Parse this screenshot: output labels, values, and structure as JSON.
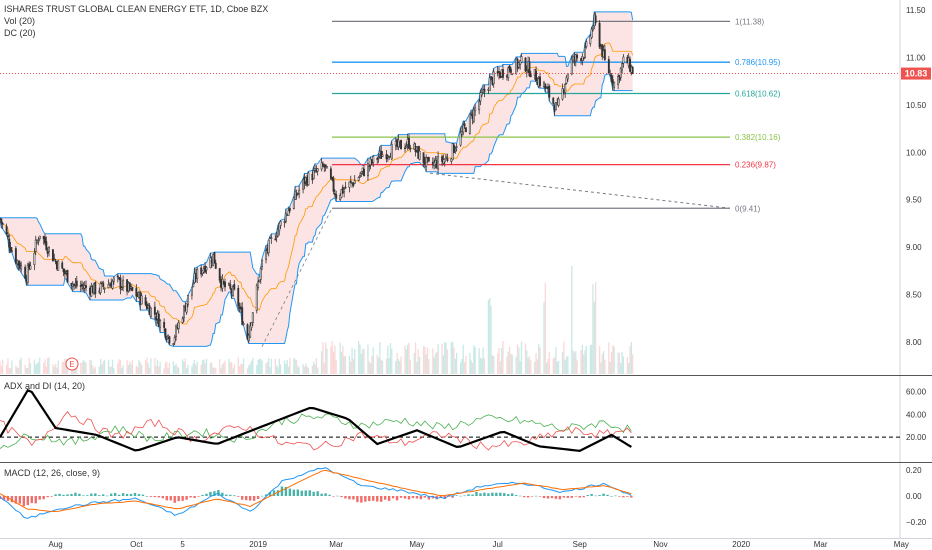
{
  "header": {
    "title": "ISHARES TRUST GLOBAL CLEAN ENERGY ETF, 1D, Cboe BZX",
    "vol_label": "Vol (20)",
    "dc_label": "DC (20)",
    "event_marker": "E"
  },
  "colors": {
    "up": "#26a69a",
    "down": "#ef5350",
    "candle": "#333333",
    "dc_fill": "#fce4e4",
    "dc_line": "#2196f3",
    "dc_mid": "#ff9800",
    "plus_di": "#4caf50",
    "minus_di": "#ef5350",
    "adx": "#000000",
    "macd": "#2196f3",
    "signal": "#ff6d00",
    "current_price_badge": "#ef5350"
  },
  "price_axis": {
    "ticks": [
      "11.50",
      "11.00",
      "10.50",
      "10.00",
      "9.50",
      "9.00",
      "8.50",
      "8.00"
    ],
    "current_price": "10.83"
  },
  "x_axis": {
    "ticks": [
      "Aug",
      "Oct",
      "5",
      "2019",
      "Mar",
      "May",
      "Jul",
      "Sep",
      "Nov",
      "2020",
      "Mar",
      "May"
    ]
  },
  "adx_panel": {
    "title": "ADX and DI (14, 20)",
    "ticks": [
      "60.00",
      "40.00",
      "20.00"
    ],
    "threshold": 20
  },
  "macd_panel": {
    "title": "MACD (12, 26, close, 9)",
    "ticks": [
      "0.20",
      "0.00",
      "−0.20"
    ]
  },
  "fib_levels": [
    {
      "label": "1(11.38)",
      "value": 11.38,
      "color": "#787b86"
    },
    {
      "label": "0.786(10.95)",
      "value": 10.95,
      "color": "#2196f3"
    },
    {
      "label": "0.618(10.62)",
      "value": 10.62,
      "color": "#26a69a"
    },
    {
      "label": "0.382(10.16)",
      "value": 10.16,
      "color": "#8bc34a"
    },
    {
      "label": "0.236(9.87)",
      "value": 9.87,
      "color": "#f23645"
    },
    {
      "label": "0(9.41)",
      "value": 9.41,
      "color": "#787b86"
    }
  ],
  "chart_data": {
    "type": "candlestick",
    "title": "ISHARES TRUST GLOBAL CLEAN ENERGY ETF, 1D, Cboe BZX",
    "ylim": [
      7.7,
      11.55
    ],
    "price_path": [
      {
        "date": "2018-06-20",
        "close": 9.3
      },
      {
        "date": "2018-07-01",
        "close": 8.9
      },
      {
        "date": "2018-07-10",
        "close": 8.7
      },
      {
        "date": "2018-07-20",
        "close": 9.15
      },
      {
        "date": "2018-08-01",
        "close": 8.85
      },
      {
        "date": "2018-08-15",
        "close": 8.6
      },
      {
        "date": "2018-09-01",
        "close": 8.55
      },
      {
        "date": "2018-09-15",
        "close": 8.65
      },
      {
        "date": "2018-10-01",
        "close": 8.5
      },
      {
        "date": "2018-10-15",
        "close": 8.3
      },
      {
        "date": "2018-10-28",
        "close": 8.0
      },
      {
        "date": "2018-11-05",
        "close": 8.3
      },
      {
        "date": "2018-11-15",
        "close": 8.7
      },
      {
        "date": "2018-11-28",
        "close": 8.9
      },
      {
        "date": "2018-12-05",
        "close": 8.6
      },
      {
        "date": "2018-12-15",
        "close": 8.5
      },
      {
        "date": "2018-12-24",
        "close": 8.05
      },
      {
        "date": "2019-01-05",
        "close": 8.9
      },
      {
        "date": "2019-01-20",
        "close": 9.3
      },
      {
        "date": "2019-02-05",
        "close": 9.7
      },
      {
        "date": "2019-02-20",
        "close": 9.85
      },
      {
        "date": "2019-03-01",
        "close": 9.55
      },
      {
        "date": "2019-03-15",
        "close": 9.7
      },
      {
        "date": "2019-04-01",
        "close": 9.95
      },
      {
        "date": "2019-04-15",
        "close": 10.05
      },
      {
        "date": "2019-04-25",
        "close": 10.1
      },
      {
        "date": "2019-05-10",
        "close": 9.85
      },
      {
        "date": "2019-05-25",
        "close": 9.95
      },
      {
        "date": "2019-06-10",
        "close": 10.35
      },
      {
        "date": "2019-06-25",
        "close": 10.75
      },
      {
        "date": "2019-07-05",
        "close": 10.85
      },
      {
        "date": "2019-07-20",
        "close": 10.95
      },
      {
        "date": "2019-08-05",
        "close": 10.7
      },
      {
        "date": "2019-08-15",
        "close": 10.45
      },
      {
        "date": "2019-08-25",
        "close": 10.95
      },
      {
        "date": "2019-09-05",
        "close": 11.05
      },
      {
        "date": "2019-09-12",
        "close": 11.38
      },
      {
        "date": "2019-09-20",
        "close": 10.95
      },
      {
        "date": "2019-09-28",
        "close": 10.7
      },
      {
        "date": "2019-10-05",
        "close": 11.0
      },
      {
        "date": "2019-10-12",
        "close": 10.83
      }
    ],
    "volume": [
      {
        "date": "2019-06-25",
        "volume": 1.0
      },
      {
        "date": "2019-08-05",
        "volume": 1.3
      },
      {
        "date": "2019-08-25",
        "volume": 1.5
      },
      {
        "date": "2019-09-12",
        "volume": 1.1
      }
    ],
    "adx": [
      {
        "date": "2018-06-20",
        "adx": 20
      },
      {
        "date": "2018-07-12",
        "adx": 63
      },
      {
        "date": "2018-08-01",
        "adx": 28
      },
      {
        "date": "2018-09-01",
        "adx": 22
      },
      {
        "date": "2018-10-01",
        "adx": 8
      },
      {
        "date": "2018-11-01",
        "adx": 20
      },
      {
        "date": "2018-12-01",
        "adx": 14
      },
      {
        "date": "2019-01-01",
        "adx": 28
      },
      {
        "date": "2019-02-10",
        "adx": 46
      },
      {
        "date": "2019-03-10",
        "adx": 36
      },
      {
        "date": "2019-04-01",
        "adx": 14
      },
      {
        "date": "2019-05-01",
        "adx": 26
      },
      {
        "date": "2019-06-01",
        "adx": 11
      },
      {
        "date": "2019-07-05",
        "adx": 25
      },
      {
        "date": "2019-08-01",
        "adx": 12
      },
      {
        "date": "2019-09-01",
        "adx": 8
      },
      {
        "date": "2019-09-25",
        "adx": 22
      },
      {
        "date": "2019-10-12",
        "adx": 10
      }
    ],
    "plus_di": [
      {
        "date": "2018-06-20",
        "value": 12
      },
      {
        "date": "2018-07-15",
        "value": 22
      },
      {
        "date": "2018-08-15",
        "value": 15
      },
      {
        "date": "2018-09-15",
        "value": 28
      },
      {
        "date": "2018-10-15",
        "value": 18
      },
      {
        "date": "2018-11-15",
        "value": 25
      },
      {
        "date": "2018-12-20",
        "value": 18
      },
      {
        "date": "2019-01-20",
        "value": 35
      },
      {
        "date": "2019-02-20",
        "value": 38
      },
      {
        "date": "2019-03-20",
        "value": 30
      },
      {
        "date": "2019-04-20",
        "value": 35
      },
      {
        "date": "2019-05-20",
        "value": 28
      },
      {
        "date": "2019-06-20",
        "value": 36
      },
      {
        "date": "2019-07-20",
        "value": 34
      },
      {
        "date": "2019-08-20",
        "value": 27
      },
      {
        "date": "2019-09-20",
        "value": 33
      },
      {
        "date": "2019-10-12",
        "value": 25
      }
    ],
    "minus_di": [
      {
        "date": "2018-06-20",
        "value": 32
      },
      {
        "date": "2018-07-15",
        "value": 12
      },
      {
        "date": "2018-08-10",
        "value": 42
      },
      {
        "date": "2018-09-15",
        "value": 20
      },
      {
        "date": "2018-10-15",
        "value": 33
      },
      {
        "date": "2018-11-15",
        "value": 18
      },
      {
        "date": "2018-12-20",
        "value": 30
      },
      {
        "date": "2019-01-20",
        "value": 14
      },
      {
        "date": "2019-02-20",
        "value": 12
      },
      {
        "date": "2019-03-20",
        "value": 22
      },
      {
        "date": "2019-04-20",
        "value": 15
      },
      {
        "date": "2019-05-20",
        "value": 23
      },
      {
        "date": "2019-06-20",
        "value": 12
      },
      {
        "date": "2019-07-20",
        "value": 14
      },
      {
        "date": "2019-08-20",
        "value": 26
      },
      {
        "date": "2019-09-20",
        "value": 22
      },
      {
        "date": "2019-10-12",
        "value": 28
      }
    ],
    "macd": [
      {
        "date": "2018-06-20",
        "macd": 0.0,
        "signal": 0.02
      },
      {
        "date": "2018-07-10",
        "macd": -0.18,
        "signal": -0.1
      },
      {
        "date": "2018-08-01",
        "macd": -0.1,
        "signal": -0.12
      },
      {
        "date": "2018-09-01",
        "macd": -0.05,
        "signal": -0.06
      },
      {
        "date": "2018-10-01",
        "macd": -0.02,
        "signal": -0.04
      },
      {
        "date": "2018-11-01",
        "macd": -0.15,
        "signal": -0.1
      },
      {
        "date": "2018-12-01",
        "macd": 0.02,
        "signal": -0.02
      },
      {
        "date": "2018-12-26",
        "macd": -0.12,
        "signal": -0.08
      },
      {
        "date": "2019-01-20",
        "macd": 0.12,
        "signal": 0.05
      },
      {
        "date": "2019-02-20",
        "macd": 0.22,
        "signal": 0.2
      },
      {
        "date": "2019-03-20",
        "macd": 0.08,
        "signal": 0.13
      },
      {
        "date": "2019-04-20",
        "macd": 0.04,
        "signal": 0.06
      },
      {
        "date": "2019-05-20",
        "macd": -0.02,
        "signal": 0.0
      },
      {
        "date": "2019-06-20",
        "macd": 0.08,
        "signal": 0.05
      },
      {
        "date": "2019-07-20",
        "macd": 0.1,
        "signal": 0.1
      },
      {
        "date": "2019-08-20",
        "macd": 0.03,
        "signal": 0.05
      },
      {
        "date": "2019-09-20",
        "macd": 0.1,
        "signal": 0.08
      },
      {
        "date": "2019-10-12",
        "macd": -0.01,
        "signal": 0.01
      }
    ],
    "macd_ylim": [
      -0.25,
      0.25
    ],
    "adx_ylim": [
      0,
      70
    ]
  }
}
